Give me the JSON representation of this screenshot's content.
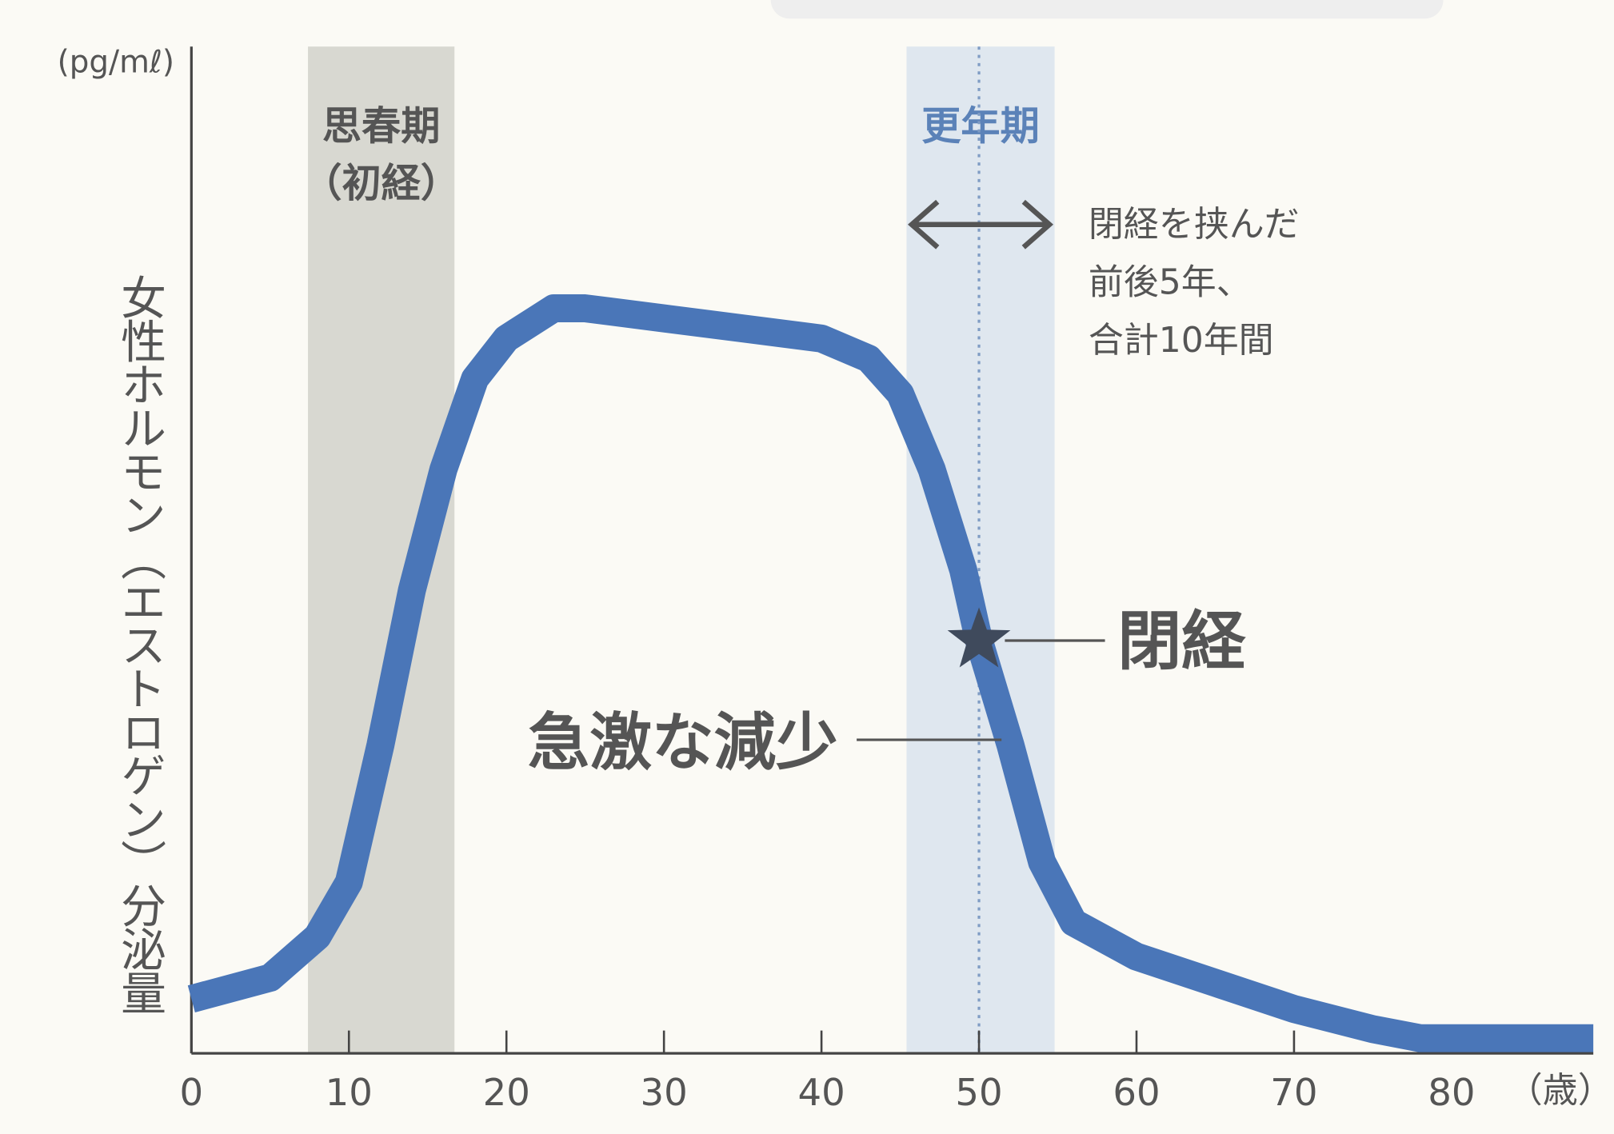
{
  "chart_data": {
    "type": "line",
    "y_label": "女性ホルモン（エストロゲン）分泌量",
    "y_unit": "(pg/mℓ)",
    "x_unit": "（歳）",
    "xlim": [
      0,
      89
    ],
    "ylim": [
      0,
      100
    ],
    "xticks": [
      0,
      10,
      20,
      30,
      40,
      50,
      60,
      70,
      80
    ],
    "x": [
      0,
      5,
      8,
      10,
      12,
      14,
      16,
      18,
      20,
      23,
      25,
      30,
      35,
      40,
      43,
      45,
      47,
      49,
      50,
      52,
      54,
      56,
      60,
      65,
      70,
      75,
      78,
      89
    ],
    "series": [
      {
        "color": "#4a76b8",
        "values": [
          5.4,
          7.5,
          11.6,
          17,
          30.6,
          46,
          58,
          67,
          71,
          74,
          74,
          73,
          72,
          71,
          69,
          65.5,
          58,
          48,
          41,
          30.6,
          19,
          13,
          9.6,
          7,
          4.4,
          2.4,
          1.5,
          1.5
        ]
      }
    ],
    "bands": [
      {
        "label": [
          "思春期",
          "（初経）"
        ],
        "xrange": [
          7.4,
          16.7
        ],
        "color": "#d8d8d1"
      },
      {
        "label": [
          "更年期"
        ],
        "xrange": [
          45.4,
          54.8
        ],
        "color": "#dfe7ef",
        "line_x": 50,
        "span_note": [
          "閉経を挟んだ",
          "前後5年、",
          "合計10年間"
        ]
      }
    ],
    "marker": {
      "label": "閉経",
      "x": 50,
      "y": 41
    },
    "annotation": "急激な減少"
  }
}
